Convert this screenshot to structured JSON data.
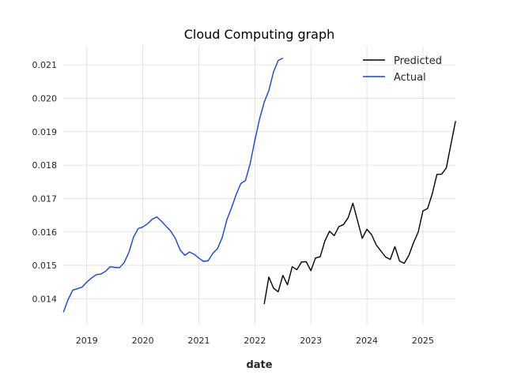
{
  "chart_data": {
    "type": "line",
    "title": "Cloud Computing graph",
    "xlabel": "date",
    "ylabel": "",
    "xlim": [
      2018.58,
      2025.58
    ],
    "ylim": [
      0.01323,
      0.02157
    ],
    "grid": true,
    "legend_position": "top-right",
    "x_ticks": [
      {
        "value": 2019,
        "label": "2019"
      },
      {
        "value": 2020,
        "label": "2020"
      },
      {
        "value": 2021,
        "label": "2021"
      },
      {
        "value": 2022,
        "label": "2022"
      },
      {
        "value": 2023,
        "label": "2023"
      },
      {
        "value": 2024,
        "label": "2024"
      },
      {
        "value": 2025,
        "label": "2025"
      }
    ],
    "y_ticks": [
      {
        "value": 0.014,
        "label": "0.014"
      },
      {
        "value": 0.015,
        "label": "0.015"
      },
      {
        "value": 0.016,
        "label": "0.016"
      },
      {
        "value": 0.017,
        "label": "0.017"
      },
      {
        "value": 0.018,
        "label": "0.018"
      },
      {
        "value": 0.019,
        "label": "0.019"
      },
      {
        "value": 0.02,
        "label": "0.020"
      },
      {
        "value": 0.021,
        "label": "0.021"
      }
    ],
    "series": [
      {
        "name": "Predicted",
        "color": "#000000",
        "x": [
          2022.167,
          2022.25,
          2022.333,
          2022.417,
          2022.5,
          2022.583,
          2022.667,
          2022.75,
          2022.833,
          2022.917,
          2023.0,
          2023.083,
          2023.167,
          2023.25,
          2023.333,
          2023.417,
          2023.5,
          2023.583,
          2023.667,
          2023.75,
          2023.833,
          2023.917,
          2024.0,
          2024.083,
          2024.167,
          2024.25,
          2024.333,
          2024.417,
          2024.5,
          2024.583,
          2024.667,
          2024.75,
          2024.833,
          2024.917,
          2025.0,
          2025.083,
          2025.167,
          2025.25,
          2025.333,
          2025.417,
          2025.5,
          2025.583
        ],
        "values": [
          0.01384,
          0.01465,
          0.01432,
          0.01421,
          0.0147,
          0.01442,
          0.01496,
          0.01487,
          0.0151,
          0.01511,
          0.01484,
          0.01522,
          0.01526,
          0.01573,
          0.01602,
          0.01589,
          0.01616,
          0.01622,
          0.01643,
          0.01686,
          0.01634,
          0.01581,
          0.01608,
          0.01592,
          0.01561,
          0.01543,
          0.01525,
          0.01518,
          0.01556,
          0.01513,
          0.01506,
          0.0153,
          0.01568,
          0.016,
          0.01663,
          0.0167,
          0.01714,
          0.01772,
          0.01773,
          0.01791,
          0.01862,
          0.01932
        ]
      },
      {
        "name": "Actual",
        "color": "#0b45e6",
        "x": [
          2018.583,
          2018.667,
          2018.75,
          2018.833,
          2018.917,
          2019.0,
          2019.083,
          2019.167,
          2019.25,
          2019.333,
          2019.417,
          2019.5,
          2019.583,
          2019.667,
          2019.75,
          2019.833,
          2019.917,
          2020.0,
          2020.083,
          2020.167,
          2020.25,
          2020.333,
          2020.417,
          2020.5,
          2020.583,
          2020.667,
          2020.75,
          2020.833,
          2020.917,
          2021.0,
          2021.083,
          2021.167,
          2021.25,
          2021.333,
          2021.417,
          2021.5,
          2021.583,
          2021.667,
          2021.75,
          2021.833,
          2021.917,
          2022.0,
          2022.083,
          2022.167,
          2022.25,
          2022.333,
          2022.417,
          2022.5
        ],
        "values": [
          0.0136,
          0.01398,
          0.01426,
          0.0143,
          0.01435,
          0.0145,
          0.01462,
          0.01472,
          0.01474,
          0.01482,
          0.01496,
          0.01494,
          0.01493,
          0.01508,
          0.01538,
          0.01584,
          0.0161,
          0.01615,
          0.01624,
          0.01638,
          0.01645,
          0.01632,
          0.01617,
          0.01602,
          0.0158,
          0.01546,
          0.0153,
          0.0154,
          0.01533,
          0.01522,
          0.01512,
          0.01514,
          0.01536,
          0.0155,
          0.01583,
          0.01636,
          0.01672,
          0.01712,
          0.01745,
          0.01754,
          0.01805,
          0.01874,
          0.01937,
          0.01988,
          0.02023,
          0.02079,
          0.02113,
          0.0212
        ]
      }
    ]
  }
}
